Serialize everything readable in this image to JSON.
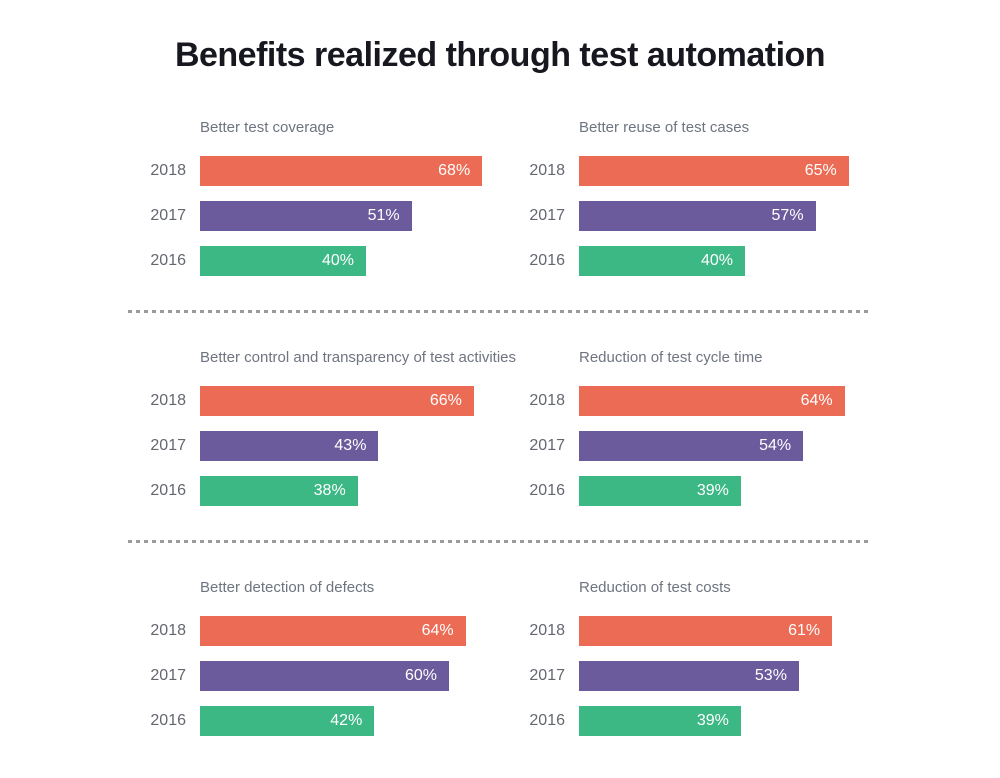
{
  "title": "Benefits realized through test automation",
  "colors": {
    "bar_2018": "#ec6b55",
    "bar_2017": "#6b5b9d",
    "bar_2016": "#3cb885",
    "divider": "#9b9b9b",
    "title_text": "#17171f",
    "chart_title_text": "#6e7480",
    "year_label_text": "#63676f",
    "bar_value_text": "#ffffff"
  },
  "chart_data": [
    {
      "type": "bar",
      "orientation": "horizontal",
      "title": "Better test coverage",
      "categories": [
        "2018",
        "2017",
        "2016"
      ],
      "values": [
        68,
        51,
        40
      ],
      "labels": [
        "68%",
        "51%",
        "40%"
      ],
      "xlim": [
        0,
        100
      ],
      "value_labels": "inside-end",
      "legend": "none",
      "grid": "off"
    },
    {
      "type": "bar",
      "orientation": "horizontal",
      "title": "Better reuse of test cases",
      "categories": [
        "2018",
        "2017",
        "2016"
      ],
      "values": [
        65,
        57,
        40
      ],
      "labels": [
        "65%",
        "57%",
        "40%"
      ],
      "xlim": [
        0,
        100
      ],
      "value_labels": "inside-end",
      "legend": "none",
      "grid": "off"
    },
    {
      "type": "bar",
      "orientation": "horizontal",
      "title": "Better control and transparency of test activities",
      "categories": [
        "2018",
        "2017",
        "2016"
      ],
      "values": [
        66,
        43,
        38
      ],
      "labels": [
        "66%",
        "43%",
        "38%"
      ],
      "xlim": [
        0,
        100
      ],
      "value_labels": "inside-end",
      "legend": "none",
      "grid": "off"
    },
    {
      "type": "bar",
      "orientation": "horizontal",
      "title": "Reduction of test cycle time",
      "categories": [
        "2018",
        "2017",
        "2016"
      ],
      "values": [
        64,
        54,
        39
      ],
      "labels": [
        "64%",
        "54%",
        "39%"
      ],
      "xlim": [
        0,
        100
      ],
      "value_labels": "inside-end",
      "legend": "none",
      "grid": "off"
    },
    {
      "type": "bar",
      "orientation": "horizontal",
      "title": "Better detection of defects",
      "categories": [
        "2018",
        "2017",
        "2016"
      ],
      "values": [
        64,
        60,
        42
      ],
      "labels": [
        "64%",
        "60%",
        "42%"
      ],
      "xlim": [
        0,
        100
      ],
      "value_labels": "inside-end",
      "legend": "none",
      "grid": "off"
    },
    {
      "type": "bar",
      "orientation": "horizontal",
      "title": "Reduction of test costs",
      "categories": [
        "2018",
        "2017",
        "2016"
      ],
      "values": [
        61,
        53,
        39
      ],
      "labels": [
        "61%",
        "53%",
        "39%"
      ],
      "xlim": [
        0,
        100
      ],
      "value_labels": "inside-end",
      "legend": "none",
      "grid": "off"
    }
  ]
}
